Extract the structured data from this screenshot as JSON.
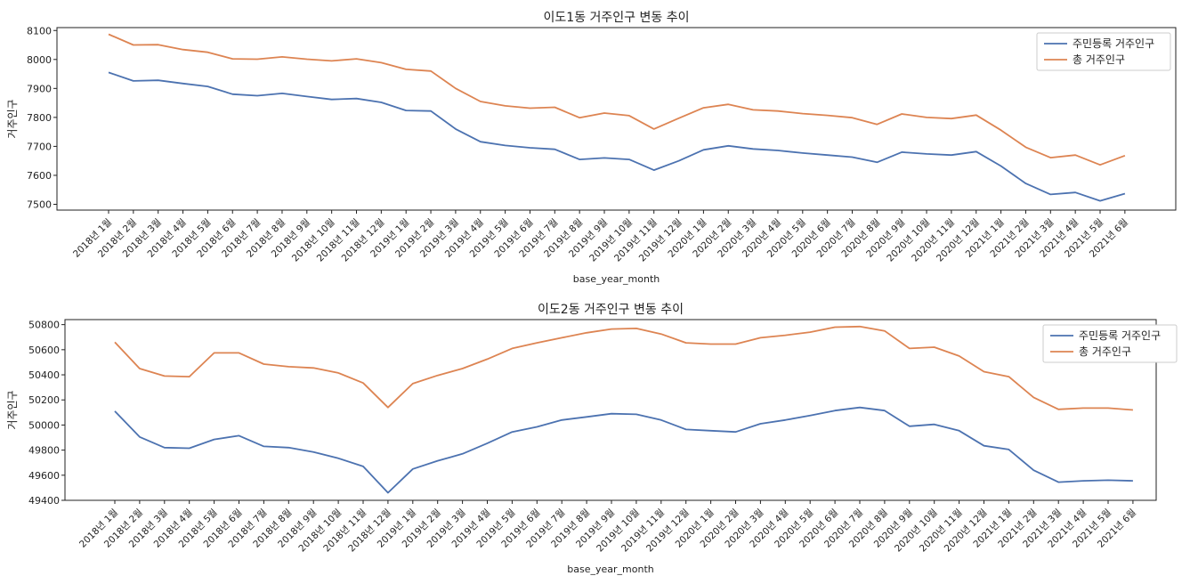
{
  "chart_data": [
    {
      "type": "line",
      "title": "이도1동 거주인구 변동 추이",
      "xlabel": "base_year_month",
      "ylabel": "거주인구",
      "ylim": [
        7480,
        8110
      ],
      "yticks": [
        7500,
        7600,
        7700,
        7800,
        7900,
        8000,
        8100
      ],
      "grid": false,
      "legend_position": "top-right",
      "categories": [
        "2018년 1월",
        "2018년 2월",
        "2018년 3월",
        "2018년 4월",
        "2018년 5월",
        "2018년 6월",
        "2018년 7월",
        "2018년 8월",
        "2018년 9월",
        "2018년 10월",
        "2018년 11월",
        "2018년 12월",
        "2019년 1월",
        "2019년 2월",
        "2019년 3월",
        "2019년 4월",
        "2019년 5월",
        "2019년 6월",
        "2019년 7월",
        "2019년 8월",
        "2019년 9월",
        "2019년 10월",
        "2019년 11월",
        "2019년 12월",
        "2020년 1월",
        "2020년 2월",
        "2020년 3월",
        "2020년 4월",
        "2020년 5월",
        "2020년 6월",
        "2020년 7월",
        "2020년 8월",
        "2020년 9월",
        "2020년 10월",
        "2020년 11월",
        "2020년 12월",
        "2021년 1월",
        "2021년 2월",
        "2021년 3월",
        "2021년 4월",
        "2021년 5월",
        "2021년 6월"
      ],
      "series": [
        {
          "name": "주민등록 거주인구",
          "color": "#4c72b0",
          "values": [
            7955,
            7926,
            7928,
            7917,
            7907,
            7880,
            7875,
            7883,
            7872,
            7862,
            7865,
            7852,
            7824,
            7822,
            7760,
            7716,
            7703,
            7695,
            7690,
            7655,
            7660,
            7655,
            7618,
            7650,
            7688,
            7702,
            7691,
            7686,
            7677,
            7670,
            7663,
            7645,
            7680,
            7674,
            7670,
            7682,
            7632,
            7572,
            7534,
            7541,
            7512,
            7537
          ]
        },
        {
          "name": "총 거주인구",
          "color": "#dd8452",
          "values": [
            8087,
            8050,
            8051,
            8034,
            8025,
            8002,
            8001,
            8009,
            8001,
            7995,
            8002,
            7989,
            7966,
            7960,
            7900,
            7855,
            7840,
            7832,
            7835,
            7799,
            7815,
            7806,
            7760,
            7797,
            7833,
            7845,
            7826,
            7822,
            7813,
            7807,
            7799,
            7776,
            7812,
            7800,
            7796,
            7808,
            7756,
            7697,
            7661,
            7670,
            7636,
            7668
          ]
        }
      ]
    },
    {
      "type": "line",
      "title": "이도2동 거주인구 변동 추이",
      "xlabel": "base_year_month",
      "ylabel": "거주인구",
      "ylim": [
        49400,
        50840
      ],
      "yticks": [
        49400,
        49600,
        49800,
        50000,
        50200,
        50400,
        50600,
        50800
      ],
      "grid": false,
      "legend_position": "top-right",
      "categories": [
        "2018년 1월",
        "2018년 2월",
        "2018년 3월",
        "2018년 4월",
        "2018년 5월",
        "2018년 6월",
        "2018년 7월",
        "2018년 8월",
        "2018년 9월",
        "2018년 10월",
        "2018년 11월",
        "2018년 12월",
        "2019년 1월",
        "2019년 2월",
        "2019년 3월",
        "2019년 4월",
        "2019년 5월",
        "2019년 6월",
        "2019년 7월",
        "2019년 8월",
        "2019년 9월",
        "2019년 10월",
        "2019년 11월",
        "2019년 12월",
        "2020년 1월",
        "2020년 2월",
        "2020년 3월",
        "2020년 4월",
        "2020년 5월",
        "2020년 6월",
        "2020년 7월",
        "2020년 8월",
        "2020년 9월",
        "2020년 10월",
        "2020년 11월",
        "2020년 12월",
        "2021년 1월",
        "2021년 2월",
        "2021년 3월",
        "2021년 4월",
        "2021년 5월",
        "2021년 6월"
      ],
      "series": [
        {
          "name": "주민등록 거주인구",
          "color": "#4c72b0",
          "values": [
            50110,
            49905,
            49820,
            49815,
            49885,
            49915,
            49830,
            49820,
            49785,
            49735,
            49670,
            49460,
            49650,
            49715,
            49770,
            49855,
            49945,
            49985,
            50040,
            50065,
            50090,
            50085,
            50040,
            49965,
            49955,
            49945,
            50010,
            50040,
            50075,
            50115,
            50140,
            50115,
            49990,
            50005,
            49955,
            49835,
            49805,
            49640,
            49545,
            49555,
            49560,
            49555
          ]
        },
        {
          "name": "총 거주인구",
          "color": "#dd8452",
          "values": [
            50660,
            50450,
            50390,
            50385,
            50575,
            50575,
            50485,
            50465,
            50455,
            50415,
            50335,
            50140,
            50330,
            50395,
            50450,
            50525,
            50610,
            50655,
            50695,
            50735,
            50765,
            50770,
            50725,
            50655,
            50645,
            50645,
            50695,
            50715,
            50740,
            50780,
            50785,
            50750,
            50610,
            50620,
            50550,
            50425,
            50385,
            50220,
            50125,
            50135,
            50135,
            50120
          ]
        }
      ]
    }
  ]
}
